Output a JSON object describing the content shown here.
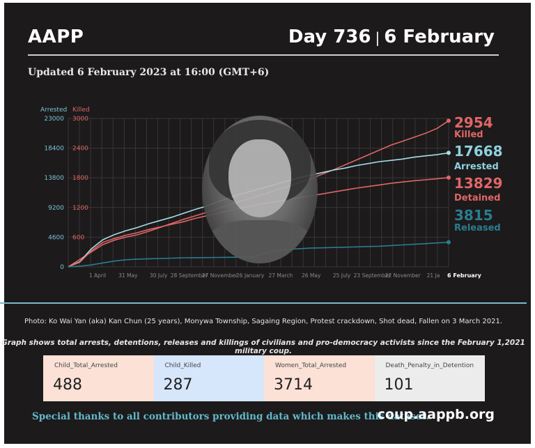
{
  "header": {
    "brand": "AAPP",
    "day": "Day 736",
    "separator": "|",
    "date": "6 February",
    "updated": "Updated 6 February 2023 at 16:00 (GMT+6)"
  },
  "chart_data": {
    "type": "line",
    "left_axis": {
      "label": "Arrested",
      "ticks": [
        "23000",
        "18400",
        "13800",
        "9200",
        "4600",
        "0"
      ],
      "range": [
        0,
        23000
      ]
    },
    "right_axis": {
      "label": "Killed",
      "ticks": [
        "3000",
        "2400",
        "1800",
        "1200",
        "600"
      ],
      "range": [
        0,
        3000
      ]
    },
    "x_tick_labels": [
      "1 April",
      "31 May",
      "30 July",
      "28 September",
      "27 November",
      "26 January",
      "27 March",
      "26 May",
      "25 July",
      "23 September",
      "22 November",
      "21 Ja",
      "6 February"
    ],
    "series": [
      {
        "name": "Killed",
        "axis": "right",
        "color": "#e06666",
        "end_value": "2954",
        "end_label": "Killed",
        "values": [
          0,
          150,
          300,
          450,
          540,
          600,
          650,
          720,
          800,
          880,
          960,
          1030,
          1100,
          1180,
          1250,
          1330,
          1400,
          1470,
          1550,
          1620,
          1700,
          1780,
          1870,
          1960,
          2060,
          2160,
          2260,
          2360,
          2460,
          2540,
          2620,
          2700,
          2800,
          2954
        ]
      },
      {
        "name": "Arrested",
        "axis": "left",
        "color": "#a8dde6",
        "end_value": "17668",
        "end_label": "Arrested",
        "values": [
          0,
          800,
          2800,
          4200,
          5000,
          5600,
          6100,
          6700,
          7200,
          7700,
          8300,
          8900,
          9400,
          10100,
          10700,
          11300,
          11800,
          12300,
          12800,
          13300,
          13800,
          14200,
          14600,
          15000,
          15300,
          15700,
          16000,
          16300,
          16500,
          16700,
          17000,
          17200,
          17400,
          17668
        ]
      },
      {
        "name": "Detained",
        "axis": "left",
        "color": "#e06666",
        "end_value": "13829",
        "end_label": "Detained",
        "values": [
          0,
          700,
          2500,
          3800,
          4400,
          4900,
          5300,
          5800,
          6200,
          6600,
          7000,
          7500,
          7900,
          8300,
          8700,
          9100,
          9500,
          9800,
          10100,
          10400,
          10700,
          11000,
          11300,
          11600,
          11900,
          12200,
          12450,
          12700,
          12950,
          13150,
          13350,
          13500,
          13650,
          13829
        ]
      },
      {
        "name": "Released",
        "axis": "left",
        "color": "#2a7d90",
        "end_value": "3815",
        "end_label": "Released",
        "values": [
          0,
          100,
          300,
          600,
          900,
          1100,
          1200,
          1250,
          1300,
          1350,
          1400,
          1420,
          1440,
          1460,
          1480,
          1500,
          1520,
          2100,
          2500,
          2700,
          2800,
          2900,
          2950,
          3000,
          3050,
          3100,
          3150,
          3200,
          3300,
          3400,
          3500,
          3600,
          3700,
          3815
        ]
      }
    ]
  },
  "captions": {
    "photo": "Photo: Ko Wai Yan (aka) Kan Chun (25 years),  Monywa Township, Sagaing Region, Protest crackdown, Shot dead, Fallen on 3 March 2021.",
    "graph_note": "Graph shows total arrests, detentions, releases and killings of civilians and pro-democracy activists since the February 1,2021 military coup."
  },
  "stats": [
    {
      "label": "Child_Total_Arrested",
      "value": "488",
      "bg": "#fbe1d6"
    },
    {
      "label": "Child_Killed",
      "value": "287",
      "bg": "#d6e6fb"
    },
    {
      "label": "Women_Total_Arrested",
      "value": "3714",
      "bg": "#fbe1d6"
    },
    {
      "label": "Death_Penalty_in_Detention",
      "value": "101",
      "bg": "#ececec"
    }
  ],
  "footer": {
    "thanks": "Special thanks to all contributors providing data which makes this dataset.",
    "url": "coup.aappb.org"
  }
}
